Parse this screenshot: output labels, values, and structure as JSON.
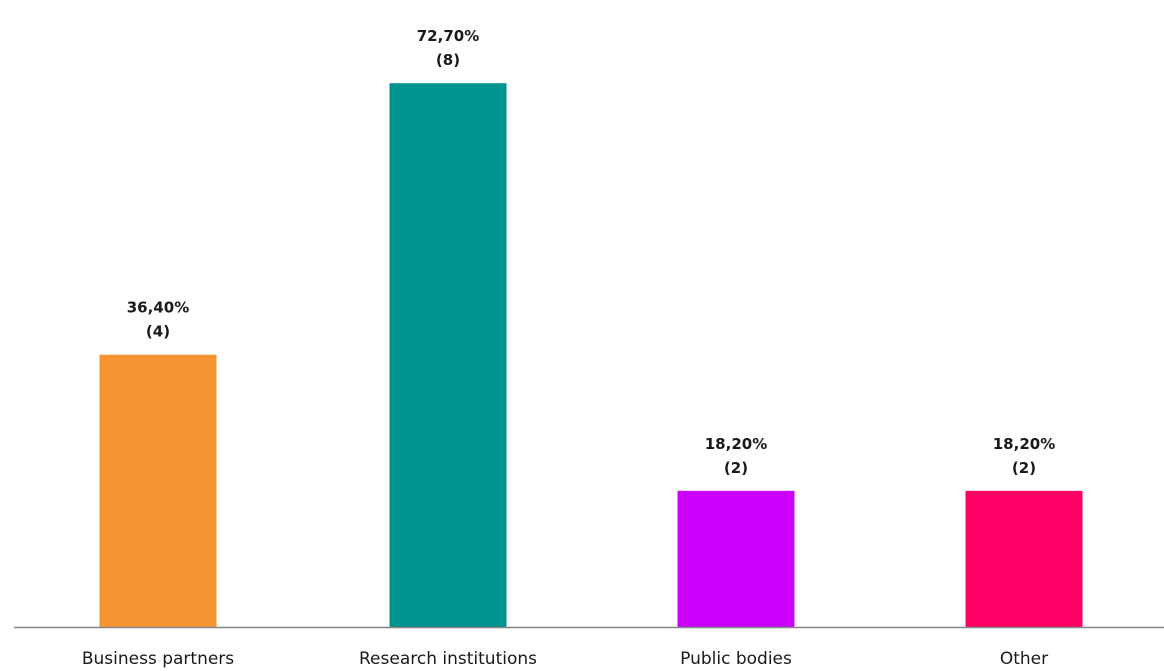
{
  "chart_data": {
    "type": "bar",
    "categories": [
      "Business partners",
      "Research institutions",
      "Public bodies",
      "Other"
    ],
    "values": [
      36.4,
      72.7,
      18.2,
      18.2
    ],
    "value_labels": [
      "36,40%",
      "72,70%",
      "18,20%",
      "18,20%"
    ],
    "count_labels": [
      "(4)",
      "(8)",
      "(2)",
      "(2)"
    ],
    "counts": [
      4,
      8,
      2,
      2
    ],
    "colors": [
      "#f79533",
      "#009490",
      "#cc00ff",
      "#ff0066"
    ],
    "axis_color": "#868686",
    "ylim": [
      0,
      80
    ],
    "grid": false,
    "legend": "none",
    "title": "",
    "xlabel": "",
    "ylabel": ""
  }
}
